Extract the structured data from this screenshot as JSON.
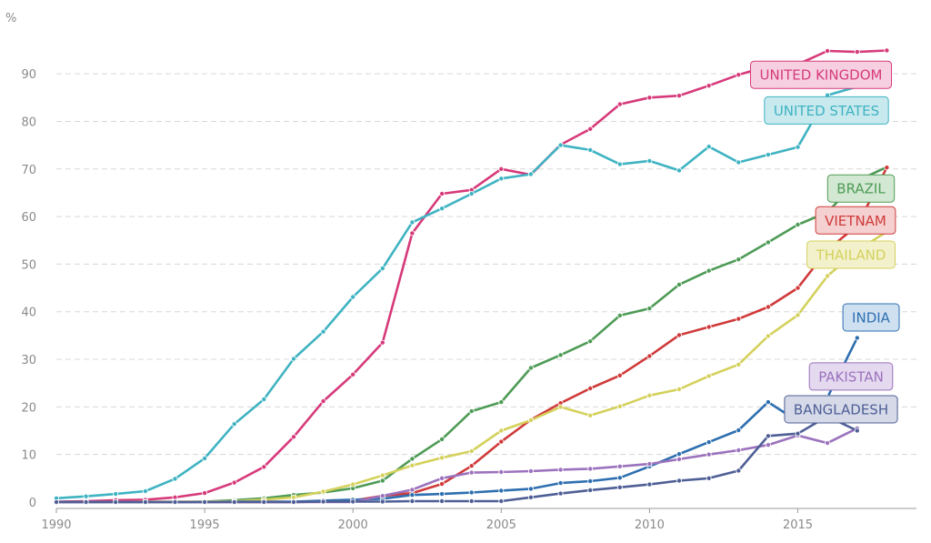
{
  "chart_data": {
    "type": "line",
    "unit": "%",
    "x": [
      1990,
      1991,
      1992,
      1993,
      1994,
      1995,
      1996,
      1997,
      1998,
      1999,
      2000,
      2001,
      2002,
      2003,
      2004,
      2005,
      2006,
      2007,
      2008,
      2009,
      2010,
      2011,
      2012,
      2013,
      2014,
      2015,
      2016,
      2017,
      2018
    ],
    "xlim": [
      1990,
      2019
    ],
    "ylim": [
      0,
      95
    ],
    "xticks": [
      "1990",
      "1995",
      "2000",
      "2005",
      "2010",
      "2015"
    ],
    "yticks": [
      "0",
      "10",
      "20",
      "30",
      "40",
      "50",
      "60",
      "70",
      "80",
      "90"
    ],
    "grid": true,
    "legend": "labels at line ends",
    "series": [
      {
        "name": "UNITED KINGDOM",
        "color": "#d63a7a",
        "label_bg": "#f6d0e0",
        "values": [
          0.1,
          0.2,
          0.4,
          0.5,
          1.0,
          1.9,
          4.1,
          7.4,
          13.7,
          21.2,
          26.8,
          33.5,
          56.5,
          64.8,
          65.6,
          70.0,
          68.8,
          75.1,
          78.4,
          83.6,
          85.0,
          85.4,
          87.5,
          89.8,
          91.6,
          92.0,
          94.8,
          94.6,
          94.9
        ]
      },
      {
        "name": "UNITED STATES",
        "color": "#3fb3c2",
        "label_bg": "#c8e9ee",
        "values": [
          0.8,
          1.2,
          1.7,
          2.3,
          4.9,
          9.2,
          16.4,
          21.6,
          30.1,
          35.8,
          43.1,
          49.1,
          58.8,
          61.7,
          64.8,
          68.0,
          68.9,
          75.0,
          74.0,
          71.0,
          71.7,
          69.7,
          74.7,
          71.4,
          73.0,
          74.6,
          85.5,
          87.3,
          null
        ]
      },
      {
        "name": "BRAZIL",
        "color": "#4e9b56",
        "label_bg": "#d2e8d2",
        "values": [
          0.0,
          0.0,
          0.0,
          0.0,
          0.0,
          0.1,
          0.4,
          0.8,
          1.5,
          2.0,
          2.9,
          4.5,
          9.1,
          13.2,
          19.1,
          21.0,
          28.2,
          30.9,
          33.8,
          39.2,
          40.7,
          45.7,
          48.6,
          51.0,
          54.6,
          58.3,
          60.9,
          67.5,
          70.4
        ]
      },
      {
        "name": "VIETNAM",
        "color": "#d03a3a",
        "label_bg": "#f4d0d0",
        "values": [
          0.0,
          0.0,
          0.0,
          0.0,
          0.0,
          0.0,
          0.0,
          0.0,
          0.0,
          0.1,
          0.3,
          1.3,
          1.9,
          3.8,
          7.6,
          12.7,
          17.3,
          20.8,
          23.9,
          26.6,
          30.7,
          35.1,
          36.8,
          38.5,
          41.0,
          45.0,
          53.0,
          58.1,
          70.3
        ]
      },
      {
        "name": "THAILAND",
        "color": "#d4d15c",
        "label_bg": "#f3f1cc",
        "values": [
          0.0,
          0.0,
          0.0,
          0.1,
          0.1,
          0.1,
          0.2,
          0.5,
          1.0,
          2.2,
          3.7,
          5.6,
          7.7,
          9.3,
          10.7,
          15.0,
          17.2,
          20.0,
          18.2,
          20.1,
          22.4,
          23.7,
          26.5,
          28.9,
          34.9,
          39.3,
          47.5,
          52.9,
          56.8
        ]
      },
      {
        "name": "INDIA",
        "color": "#2e6fb0",
        "label_bg": "#cfe0f1",
        "values": [
          0.0,
          0.0,
          0.0,
          0.0,
          0.0,
          0.0,
          0.1,
          0.1,
          0.1,
          0.3,
          0.5,
          0.7,
          1.5,
          1.7,
          2.0,
          2.4,
          2.8,
          4.0,
          4.4,
          5.1,
          7.5,
          10.1,
          12.6,
          15.1,
          21.0,
          17.0,
          22.0,
          34.5,
          null
        ]
      },
      {
        "name": "PAKISTAN",
        "color": "#9b72bd",
        "label_bg": "#e4d9ef",
        "values": [
          0.0,
          0.0,
          0.0,
          0.0,
          0.0,
          0.0,
          0.0,
          0.0,
          0.0,
          0.0,
          0.0,
          1.3,
          2.6,
          5.0,
          6.2,
          6.3,
          6.5,
          6.8,
          7.0,
          7.5,
          8.0,
          9.0,
          10.0,
          10.9,
          12.0,
          14.0,
          12.4,
          15.5,
          null
        ]
      },
      {
        "name": "BANGLADESH",
        "color": "#4f5f96",
        "label_bg": "#d5d9e8",
        "values": [
          0.0,
          0.0,
          0.0,
          0.0,
          0.0,
          0.0,
          0.0,
          0.0,
          0.0,
          0.1,
          0.1,
          0.1,
          0.2,
          0.2,
          0.2,
          0.2,
          1.0,
          1.8,
          2.5,
          3.1,
          3.7,
          4.5,
          5.0,
          6.6,
          13.9,
          14.4,
          18.0,
          15.0,
          null
        ]
      }
    ]
  }
}
